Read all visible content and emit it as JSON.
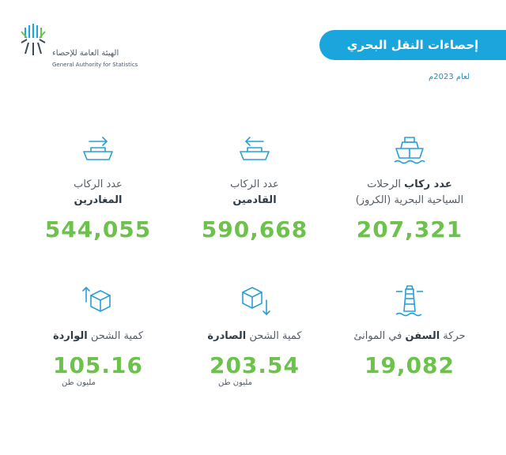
{
  "logo": {
    "arabic_name": "الهيئة العامة للإحصاء",
    "english_name": "General Authority for Statistics"
  },
  "header": {
    "title": "إحصاءات النقل البحري",
    "subtitle": "لعام 2023م"
  },
  "stats": [
    {
      "icon": "cruise-ship-icon",
      "label_bold": "عدد ركاب",
      "label_rest": " الرحلات",
      "label_line2": "السياحية البحرية (الكروز)",
      "value": "207,321"
    },
    {
      "icon": "arriving-ship-icon",
      "label_line1": "عدد الركاب",
      "label_bold": "القادمين",
      "value": "590,668"
    },
    {
      "icon": "departing-ship-icon",
      "label_line1": "عدد الركاب",
      "label_bold": "المغادرين",
      "value": "544,055"
    },
    {
      "icon": "lighthouse-icon",
      "label_pre": "حركة ",
      "label_bold": "السفن",
      "label_post": " في الموانئ",
      "value": "19,082"
    },
    {
      "icon": "outgoing-box-icon",
      "label_pre": "كمية الشحن ",
      "label_bold": "الصادرة",
      "value": "203.54",
      "unit": "مليون طن"
    },
    {
      "icon": "incoming-box-icon",
      "label_pre": "كمية الشحن ",
      "label_bold": "الواردة",
      "value": "105.16",
      "unit": "مليون طن"
    }
  ],
  "colors": {
    "accent_blue": "#1aa6dd",
    "value_green": "#6cc24a",
    "icon_blue": "#2a9fd6"
  }
}
